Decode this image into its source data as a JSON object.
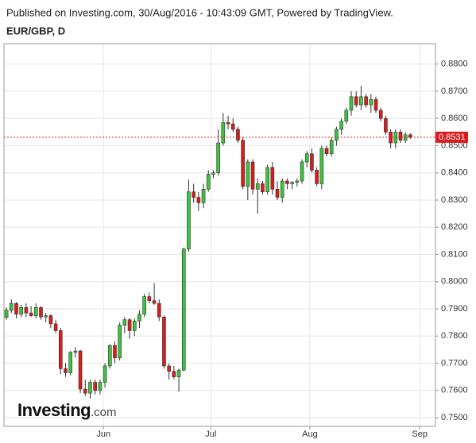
{
  "chart_data": {
    "type": "candlestick",
    "header": "Published on Investing.com, 30/Aug/2016 - 10:43:09 GMT, Powered by TradingView.",
    "title": "EUR/GBP, D",
    "logo": {
      "name": "Investing",
      "suffix": ".com"
    },
    "open": [
      0.7868,
      0.7895,
      0.792,
      0.788,
      0.7905,
      0.7885,
      0.7875,
      0.7905,
      0.787,
      0.7875,
      0.7845,
      0.782,
      0.768,
      0.7665,
      0.774,
      0.7745,
      0.7605,
      0.759,
      0.763,
      0.76,
      0.763,
      0.769,
      0.7765,
      0.772,
      0.784,
      0.786,
      0.782,
      0.7855,
      0.788,
      0.7945,
      0.793,
      0.792,
      0.787,
      0.769,
      0.767,
      0.765,
      0.7675,
      0.812,
      0.833,
      0.831,
      0.829,
      0.834,
      0.8395,
      0.84,
      0.851,
      0.8585,
      0.858,
      0.856,
      0.852,
      0.835,
      0.844,
      0.834,
      0.836,
      0.833,
      0.842,
      0.834,
      0.831,
      0.837,
      0.836,
      0.8365,
      0.837,
      0.844,
      0.847,
      0.841,
      0.836,
      0.849,
      0.847,
      0.852,
      0.856,
      0.859,
      0.863,
      0.868,
      0.865,
      0.868,
      0.865,
      0.867,
      0.863,
      0.86,
      0.855,
      0.851,
      0.855,
      0.852,
      0.854
    ],
    "high": [
      0.7905,
      0.7935,
      0.7925,
      0.7915,
      0.792,
      0.791,
      0.792,
      0.791,
      0.7885,
      0.788,
      0.786,
      0.783,
      0.77,
      0.7745,
      0.776,
      0.775,
      0.764,
      0.764,
      0.764,
      0.764,
      0.77,
      0.777,
      0.778,
      0.785,
      0.787,
      0.7865,
      0.7865,
      0.7895,
      0.7955,
      0.796,
      0.7995,
      0.7935,
      0.7875,
      0.77,
      0.769,
      0.768,
      0.8125,
      0.8375,
      0.836,
      0.833,
      0.836,
      0.841,
      0.841,
      0.856,
      0.862,
      0.861,
      0.86,
      0.857,
      0.853,
      0.845,
      0.845,
      0.838,
      0.837,
      0.843,
      0.844,
      0.837,
      0.838,
      0.838,
      0.837,
      0.838,
      0.845,
      0.848,
      0.849,
      0.842,
      0.85,
      0.85,
      0.853,
      0.857,
      0.86,
      0.864,
      0.87,
      0.87,
      0.872,
      0.869,
      0.869,
      0.868,
      0.864,
      0.861,
      0.856,
      0.856,
      0.856,
      0.855,
      0.8545
    ],
    "low": [
      0.786,
      0.7885,
      0.7865,
      0.787,
      0.787,
      0.787,
      0.7865,
      0.786,
      0.785,
      0.783,
      0.781,
      0.766,
      0.765,
      0.7655,
      0.772,
      0.759,
      0.758,
      0.757,
      0.7585,
      0.7585,
      0.761,
      0.768,
      0.77,
      0.771,
      0.781,
      0.779,
      0.78,
      0.783,
      0.787,
      0.792,
      0.7915,
      0.7855,
      0.768,
      0.764,
      0.764,
      0.7595,
      0.767,
      0.811,
      0.829,
      0.826,
      0.827,
      0.833,
      0.838,
      0.839,
      0.85,
      0.856,
      0.855,
      0.851,
      0.834,
      0.83,
      0.832,
      0.825,
      0.832,
      0.832,
      0.832,
      0.83,
      0.829,
      0.834,
      0.834,
      0.835,
      0.836,
      0.842,
      0.84,
      0.835,
      0.834,
      0.846,
      0.846,
      0.85,
      0.854,
      0.858,
      0.861,
      0.864,
      0.863,
      0.864,
      0.862,
      0.862,
      0.859,
      0.854,
      0.849,
      0.849,
      0.851,
      0.851,
      0.8525
    ],
    "close": [
      0.7895,
      0.792,
      0.788,
      0.7905,
      0.7885,
      0.7875,
      0.7905,
      0.787,
      0.7875,
      0.7845,
      0.782,
      0.768,
      0.7665,
      0.774,
      0.7745,
      0.7605,
      0.759,
      0.763,
      0.76,
      0.763,
      0.769,
      0.7765,
      0.772,
      0.784,
      0.786,
      0.782,
      0.7855,
      0.788,
      0.7945,
      0.793,
      0.792,
      0.787,
      0.769,
      0.767,
      0.765,
      0.7675,
      0.812,
      0.833,
      0.831,
      0.829,
      0.834,
      0.8395,
      0.84,
      0.851,
      0.8585,
      0.858,
      0.856,
      0.852,
      0.835,
      0.844,
      0.834,
      0.836,
      0.833,
      0.842,
      0.834,
      0.831,
      0.837,
      0.836,
      0.8365,
      0.837,
      0.844,
      0.847,
      0.841,
      0.836,
      0.849,
      0.847,
      0.852,
      0.856,
      0.859,
      0.863,
      0.868,
      0.865,
      0.868,
      0.865,
      0.867,
      0.863,
      0.86,
      0.855,
      0.851,
      0.855,
      0.852,
      0.854,
      0.8531
    ],
    "up_color": "#3cc43c",
    "down_color": "#d91c1c",
    "last_price": 0.8531,
    "xlim": [
      -0.5,
      87.1
    ],
    "xticks": [
      {
        "value": 19.7,
        "label": "Jun"
      },
      {
        "value": 41.5,
        "label": "Jul"
      },
      {
        "value": 61.6,
        "label": "Aug"
      },
      {
        "value": 83.9,
        "label": "Sep"
      }
    ],
    "ylim": [
      0.7468,
      0.8875
    ],
    "yticks": [
      {
        "value": 0.75,
        "label": "0.7500"
      },
      {
        "value": 0.76,
        "label": "0.7600"
      },
      {
        "value": 0.77,
        "label": "0.7700"
      },
      {
        "value": 0.78,
        "label": "0.7800"
      },
      {
        "value": 0.79,
        "label": "0.7900"
      },
      {
        "value": 0.8,
        "label": "0.8000"
      },
      {
        "value": 0.81,
        "label": "0.8100"
      },
      {
        "value": 0.82,
        "label": "0.8200"
      },
      {
        "value": 0.83,
        "label": "0.8300"
      },
      {
        "value": 0.84,
        "label": "0.8400"
      },
      {
        "value": 0.85,
        "label": "0.8500"
      },
      {
        "value": 0.86,
        "label": "0.8600"
      },
      {
        "value": 0.87,
        "label": "0.8700"
      },
      {
        "value": 0.88,
        "label": "0.8800"
      }
    ],
    "grid": true
  }
}
